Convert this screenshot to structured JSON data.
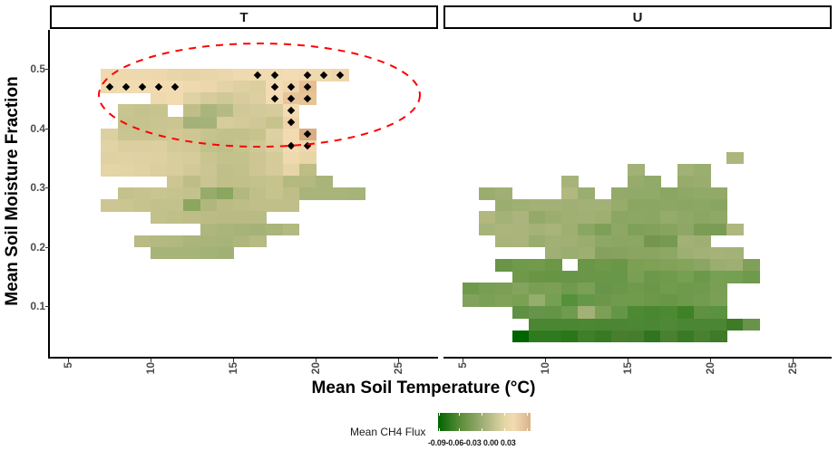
{
  "chart_data": {
    "type": "heatmap",
    "title": "",
    "xlabel": "Mean Soil Temperature (°C)",
    "ylabel": "Mean Soil Moisture Fraction",
    "facets": [
      "T",
      "U"
    ],
    "x_ticks": [
      5,
      10,
      15,
      20,
      25
    ],
    "y_ticks": [
      0.1,
      0.2,
      0.3,
      0.4,
      0.5
    ],
    "xlim": [
      4,
      27
    ],
    "ylim": [
      0.03,
      0.56
    ],
    "legend": {
      "title": "Mean CH4 Flux",
      "ticks": [
        -0.09,
        -0.06,
        -0.03,
        0.0,
        0.03
      ],
      "colors": [
        "#006400",
        "#a3b17a",
        "#f2dbb0",
        "#d9b38c"
      ],
      "position": "bottom"
    },
    "annotations": [
      {
        "type": "dashed-ellipse",
        "panel": "T",
        "color": "#ff0000",
        "center_temp": 14.5,
        "center_moisture": 0.44,
        "note": "highlights high-moisture positive flux region"
      },
      {
        "type": "points",
        "panel": "T",
        "marker": "diamond",
        "color": "#000000",
        "description": "significant cells"
      }
    ],
    "panels": {
      "T": {
        "tile_width_temp": 1,
        "tile_height_moisture": 0.02,
        "rows": [
          {
            "moisture": 0.49,
            "start_temp": 7,
            "colors": [
              "#efd9ae",
              "#eed9ae",
              "#eed9ae",
              "#eed8ab",
              "#e8d5a8",
              "#e6d4a7",
              "#e8d5a8",
              "#ebd7ab",
              "#efd9ae",
              "#f0dab0",
              "#f0dab0",
              "#f3dcb3",
              "#efd9ae",
              "#efd9ae",
              "#eed6ac"
            ]
          },
          {
            "moisture": 0.47,
            "start_temp": 7,
            "colors": [
              "#f0dab0",
              "#f1dbb1",
              "#f1dbb1",
              "#f1dbb1",
              "#f1dbb1",
              "#eed9ae",
              "#ebd7ab",
              "#e3d3a6",
              "#dfd0a2",
              "#dbce9f",
              "#f3dcb3",
              "#f0d6ab",
              "#e5bf92"
            ]
          },
          {
            "moisture": 0.45,
            "start_temp": 10,
            "colors": [
              "#efd9ae",
              "#f2dbb1",
              "#e0d1a4",
              "#d6cb9b",
              "#cfc897",
              "#d8cc9c",
              "#ddcfa0",
              "#f3dcb3",
              "#e7c59a",
              "#e6c497"
            ]
          },
          {
            "moisture": 0.43,
            "start_temp": 8,
            "colors": [
              "#c9c591",
              "#c5c28d",
              "#c8c490",
              "null",
              "#c0be88",
              "#a9b57c",
              "#b5ba82",
              "#d0c898",
              "#d3ca99",
              "#d6cb9b",
              "#f3dcb3"
            ]
          },
          {
            "moisture": 0.41,
            "start_temp": 8,
            "colors": [
              "#c6c38e",
              "#c6c38e",
              "#c9c491",
              "#cac591",
              "#a4b178",
              "#a5b279",
              "#d6cb9a",
              "#d4ca99",
              "#cfc896",
              "#c6c38d",
              "#efd3aa"
            ]
          },
          {
            "moisture": 0.39,
            "start_temp": 7,
            "colors": [
              "#dcd0a0",
              "#c9c491",
              "#c9c491",
              "#cbc592",
              "#d1c896",
              "#cec794",
              "#c7c38e",
              "#c3c18b",
              "#c3c18b",
              "#c6c38d",
              "#ddd0a1",
              "#f2dbb1",
              "#d9ae83"
            ]
          },
          {
            "moisture": 0.37,
            "start_temp": 7,
            "colors": [
              "#e2d3a5",
              "#dbce9f",
              "#dbce9f",
              "#ddcfa0",
              "#d4ca99",
              "#d0c896",
              "#c3c18b",
              "#c0bf89",
              "#c6c38d",
              "#cfc795",
              "#dccf9f",
              "#f2dbb1",
              "#f0d6ab"
            ]
          },
          {
            "moisture": 0.35,
            "start_temp": 7,
            "colors": [
              "#dfd1a3",
              "#e0d2a3",
              "#dfd1a3",
              "#ddd0a1",
              "#d8cd9d",
              "#d6cb9b",
              "#c9c591",
              "#c4c28c",
              "#c4c28c",
              "#cdc694",
              "#d5cb9a",
              "#efd9ae",
              "#e8d5a8"
            ]
          },
          {
            "moisture": 0.33,
            "start_temp": 7,
            "colors": [
              "#e4d4a6",
              "#e3d4a6",
              "#e0d2a3",
              "#dbcf9f",
              "#d8cd9d",
              "#d2c998",
              "#cac592",
              "#c1bf89",
              "#c3c18b",
              "#cdc694",
              "#d5cb9a",
              "#e7d5a8",
              "#bdbd86"
            ]
          },
          {
            "moisture": 0.31,
            "start_temp": 11,
            "colors": [
              "#cdc694",
              "#bebd87",
              "#c9c491",
              "#c0bf89",
              "#c2c08a",
              "#c4c28c",
              "#c6c38d",
              "#b4b980",
              "#b4b980",
              "#a9b47b"
            ]
          },
          {
            "moisture": 0.29,
            "start_temp": 8,
            "colors": [
              "#c4c28c",
              "#c7c38e",
              "#c9c590",
              "#c6c38d",
              "#c4c28c",
              "#97ab6a",
              "#8aa65f",
              "#b2b87f",
              "#c1bf89",
              "#c6c38d",
              "#bfbe88",
              "#a9b47b",
              "#a9b47b",
              "#a9b47b",
              "#a6b379"
            ]
          },
          {
            "moisture": 0.27,
            "start_temp": 7,
            "colors": [
              "#cdc694",
              "#cac591",
              "#c6c38d",
              "#c3c18b",
              "#c4c28c",
              "#8aa65f",
              "#b0b77e",
              "#bbbc85",
              "#bdbd86",
              "#c1bf89",
              "#c1bf89",
              "#c0bf89"
            ]
          },
          {
            "moisture": 0.25,
            "start_temp": 10,
            "colors": [
              "#c3c18b",
              "#bfbf88",
              "#bebd87",
              "#bbbc85",
              "#b8bb83",
              "#b8bb83",
              "#b9bb84"
            ]
          },
          {
            "moisture": 0.23,
            "start_temp": 13,
            "colors": [
              "#aeb67d",
              "#aab57b",
              "#a6b379",
              "#a4b277",
              "#aab57b",
              "#b4b980"
            ]
          },
          {
            "moisture": 0.21,
            "start_temp": 9,
            "colors": [
              "#b8bb83",
              "#b4b981",
              "#b1b880",
              "#abb57b",
              "#a9b47b",
              "#a6b379",
              "#aeb67d",
              "#b7ba82"
            ]
          },
          {
            "moisture": 0.19,
            "start_temp": 10,
            "colors": [
              "#a6b379",
              "#a6b379",
              "#a6b379",
              "#a3b277",
              "#a1b176"
            ]
          }
        ],
        "points": [
          {
            "temp": 16.5,
            "moisture": 0.49
          },
          {
            "temp": 17.5,
            "moisture": 0.49
          },
          {
            "temp": 19.5,
            "moisture": 0.49
          },
          {
            "temp": 20.5,
            "moisture": 0.49
          },
          {
            "temp": 21.5,
            "moisture": 0.49
          },
          {
            "temp": 7.5,
            "moisture": 0.47
          },
          {
            "temp": 8.5,
            "moisture": 0.47
          },
          {
            "temp": 9.5,
            "moisture": 0.47
          },
          {
            "temp": 10.5,
            "moisture": 0.47
          },
          {
            "temp": 11.5,
            "moisture": 0.47
          },
          {
            "temp": 17.5,
            "moisture": 0.47
          },
          {
            "temp": 18.5,
            "moisture": 0.47
          },
          {
            "temp": 19.5,
            "moisture": 0.47
          },
          {
            "temp": 17.5,
            "moisture": 0.45
          },
          {
            "temp": 18.5,
            "moisture": 0.45
          },
          {
            "temp": 19.5,
            "moisture": 0.45
          },
          {
            "temp": 18.5,
            "moisture": 0.43
          },
          {
            "temp": 18.5,
            "moisture": 0.41
          },
          {
            "temp": 19.5,
            "moisture": 0.39
          },
          {
            "temp": 18.5,
            "moisture": 0.37
          },
          {
            "temp": 19.5,
            "moisture": 0.37
          }
        ]
      },
      "U": {
        "tile_width_temp": 1,
        "tile_height_moisture": 0.02,
        "rows": [
          {
            "moisture": 0.35,
            "start_temp": 21,
            "colors": [
              "#adb67c"
            ]
          },
          {
            "moisture": 0.33,
            "start_temp": 15,
            "colors": [
              "#a2b176",
              "null",
              "null",
              "#a2b176",
              "#9aae70"
            ]
          },
          {
            "moisture": 0.31,
            "start_temp": 11,
            "colors": [
              "#a7b37a",
              "null",
              "null",
              "null",
              "#96ab6c",
              "#92aa69",
              "null",
              "#97ab6b",
              "#9aad6f"
            ]
          },
          {
            "moisture": 0.29,
            "start_temp": 6,
            "colors": [
              "#9aad6f",
              "#a0b074",
              "null",
              "null",
              "null",
              "#b2b87f",
              "#9aae70",
              "null",
              "#93aa6a",
              "#92aa69",
              "#92aa69",
              "#8aa662",
              "#90a867",
              "#92aa69",
              "#92a968"
            ]
          },
          {
            "moisture": 0.27,
            "start_temp": 7,
            "colors": [
              "#9bae70",
              "#9fb073",
              "#a3b176",
              "#a3b177",
              "#a0b074",
              "#a2b176",
              "#a2b176",
              "#97ab6b",
              "#8aa662",
              "#8aa662",
              "#8ca764",
              "#8ba663",
              "#8ca764",
              "#89a661"
            ]
          },
          {
            "moisture": 0.25,
            "start_temp": 6,
            "colors": [
              "#b2b87f",
              "#a3b277",
              "#abb47c",
              "#93aa6a",
              "#9bae70",
              "#9fb073",
              "#a1b175",
              "#9eaf72",
              "#8ba663",
              "#8ca764",
              "#8ba663",
              "#94ab6b",
              "#90a867",
              "#8ba663",
              "#90a867"
            ]
          },
          {
            "moisture": 0.23,
            "start_temp": 6,
            "colors": [
              "#a6b379",
              "#abb57c",
              "#aab47b",
              "#a4b277",
              "#a8b47a",
              "#9eaf72",
              "#8aa662",
              "#7e9f58",
              "#8ea766",
              "#7fa059",
              "#82a25b",
              "#87a45f",
              "#8ea766",
              "#7a9c55",
              "#7a9c55",
              "#afb67e"
            ]
          },
          {
            "moisture": 0.21,
            "start_temp": 7,
            "colors": [
              "#a9b47b",
              "#aab47c",
              "#99ad6f",
              "#a1b175",
              "#a0b074",
              "#9aad6f",
              "#8ea766",
              "#8ba663",
              "#8ca764",
              "#75964e",
              "#779a52",
              "#a2b176",
              "#9faf73"
            ]
          },
          {
            "moisture": 0.19,
            "start_temp": 10,
            "colors": [
              "#a0b074",
              "#9aae70",
              "#9eaf72",
              "#86a15d",
              "#87a25e",
              "#8aa562",
              "#89a561",
              "#8da765",
              "#9db073",
              "#a2b176",
              "#a5b379",
              "#a3b277"
            ]
          },
          {
            "moisture": 0.17,
            "start_temp": 7,
            "colors": [
              "#6a9448",
              "#6e9a49",
              "#719a4b",
              "#6c9747",
              "null",
              "#6a9647",
              "#6d9949",
              "#6a9647",
              "#7ba054",
              "#7ea156",
              "#82a259",
              "#84a45b",
              "#8ba663",
              "#9aae70",
              "#9faf73",
              "#80a05a"
            ]
          },
          {
            "moisture": 0.15,
            "start_temp": 7,
            "colors": [
              "null",
              "#6f9849",
              "#699545",
              "#679544",
              "#68954a",
              "#6a9648",
              "#6a9747",
              "#69974a",
              "#7b9e55",
              "#6c9849",
              "#709b4c",
              "#75a051",
              "#6b9849",
              "#76a052",
              "#759f52",
              "#6d9a4b"
            ]
          },
          {
            "moisture": 0.13,
            "start_temp": 5,
            "colors": [
              "#6f9a4c",
              "#779f53",
              "#7ba055",
              "#84a35c",
              "#7a9f54",
              "#7c9f55",
              "#709a4d",
              "#7aa055",
              "#67964a",
              "#6c9648",
              "#6f9a4c",
              "#6c9749",
              "#719b4d",
              "#6e9a4b",
              "#709b4d",
              "#799f55"
            ]
          },
          {
            "moisture": 0.11,
            "start_temp": 5,
            "colors": [
              "#82a25c",
              "#79a054",
              "#7fa258",
              "#7aa054",
              "#95ad6d",
              "#75a051",
              "#55913a",
              "#65974a",
              "#6c9749",
              "#709a4c",
              "#709a4c",
              "#6d9849",
              "#6a9648",
              "#6f9a4b",
              "#729c4f",
              "#7ba055"
            ]
          },
          {
            "moisture": 0.09,
            "start_temp": 8,
            "colors": [
              "#5f9142",
              "#66944a",
              "#639447",
              "#6e9b4d",
              "#a3b176",
              "#7b9f56",
              "#64964a",
              "#4e8a33",
              "#4a8830",
              "#4c8a32",
              "#3f8127",
              "#5f9140",
              "#5a9240"
            ]
          },
          {
            "moisture": 0.07,
            "start_temp": 9,
            "colors": [
              "#4b8732",
              "#4b8732",
              "#4b8732",
              "#4c8733",
              "#4b8732",
              "#4c8633",
              "#4c8733",
              "#4b8732",
              "#4f8935",
              "#4b8732",
              "#4b8732",
              "#4b8732",
              "#3f7b27",
              "#699348"
            ]
          },
          {
            "moisture": 0.05,
            "start_temp": 8,
            "colors": [
              "#006400",
              "#2f7a1e",
              "#2f7a1e",
              "#2b7619",
              "#417e29",
              "#367a22",
              "#497e2f",
              "#467d2d",
              "#327320",
              "#4a8131",
              "#3a7a25",
              "#4a8131",
              "#3e7a27"
            ]
          }
        ],
        "points": []
      }
    }
  },
  "facet_strips": {
    "left": "T",
    "right": "U"
  },
  "axes": {
    "x_label": "Mean Soil Temperature (°C)",
    "y_label": "Mean Soil Moisture Fraction",
    "x_ticks": [
      "5",
      "10",
      "15",
      "20",
      "25"
    ],
    "y_ticks": [
      "0.5",
      "0.4",
      "0.3",
      "0.2",
      "0.1"
    ]
  },
  "legend": {
    "title": "Mean CH4 Flux",
    "labels": "-0.09-0.06-0.03 0.00 0.03"
  }
}
